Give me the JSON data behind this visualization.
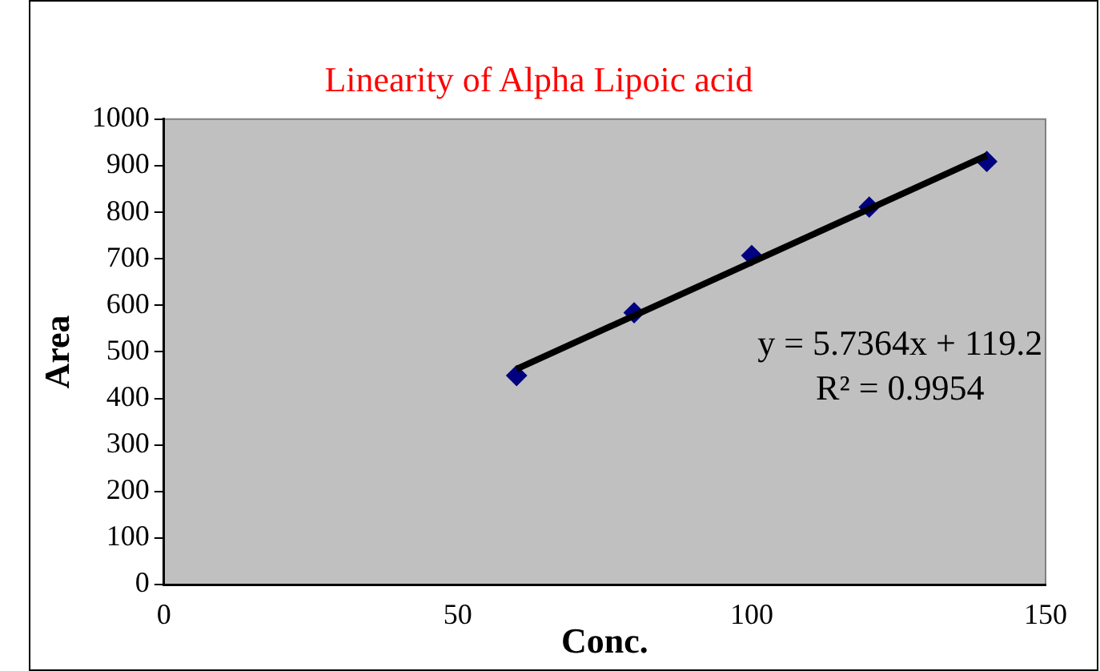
{
  "chart_data": {
    "type": "scatter",
    "title": "Linearity of Alpha Lipoic acid",
    "xlabel": "Conc.",
    "ylabel": "Area",
    "x": [
      60,
      80,
      100,
      120,
      140
    ],
    "series": [
      {
        "color": "#000080",
        "values": [
          449,
          584,
          707,
          811,
          909
        ],
        "marker": "diamond"
      },
      {
        "type": "line",
        "color": "#000000",
        "x": [
          60,
          140
        ],
        "values": [
          463,
          922
        ],
        "marker": "none"
      }
    ],
    "annotations": [
      "y = 5.7364x + 119.2",
      "R² = 0.9954"
    ],
    "xlim": [
      0,
      150
    ],
    "xticks": [
      0,
      50,
      100,
      150
    ],
    "ylim": [
      0,
      1000
    ],
    "yticks": [
      0,
      100,
      200,
      300,
      400,
      500,
      600,
      700,
      800,
      900,
      1000
    ],
    "grid": false,
    "legend": false
  }
}
